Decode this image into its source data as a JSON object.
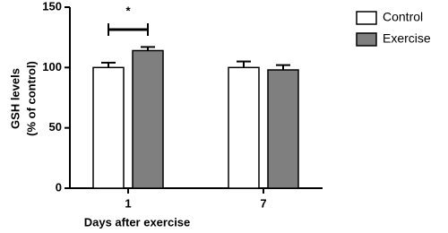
{
  "chart_data": {
    "type": "bar",
    "categories": [
      "1",
      "7"
    ],
    "series": [
      {
        "name": "Control",
        "color": "#ffffff",
        "values": [
          100,
          100
        ],
        "errors": [
          4,
          5
        ]
      },
      {
        "name": "Exercise",
        "color": "#7f7f7f",
        "values": [
          114,
          98
        ],
        "errors": [
          3,
          4
        ]
      }
    ],
    "ylim": [
      0,
      150
    ],
    "yticks": [
      0,
      50,
      100,
      150
    ],
    "ylabel": [
      "GSH levels",
      "(% of control)"
    ],
    "xlabel": "Days after exercise",
    "annotation": "*"
  }
}
